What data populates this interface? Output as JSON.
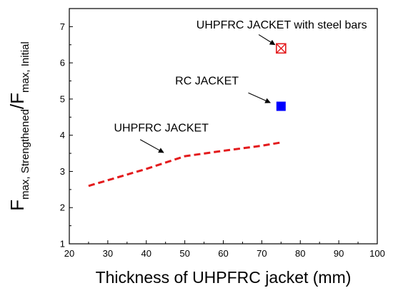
{
  "chart_data": {
    "type": "scatter",
    "xlabel": "Thickness of UHPFRC jacket (mm)",
    "ylabel": {
      "main1": "F",
      "sub1": "max, Strengthened",
      "slash": "/F",
      "sub2": "max, Initial"
    },
    "xlim": [
      20,
      100
    ],
    "ylim": [
      1,
      7.5
    ],
    "x_ticks": [
      20,
      30,
      40,
      50,
      60,
      70,
      80,
      90,
      100
    ],
    "y_ticks": [
      1,
      2,
      3,
      4,
      5,
      6,
      7
    ],
    "grid": false,
    "series": [
      {
        "name": "UHPFRC JACKET",
        "kind": "line",
        "style": "dashed",
        "color": "#e31a1c",
        "points": [
          {
            "x": 25,
            "y": 2.6
          },
          {
            "x": 40,
            "y": 3.07
          },
          {
            "x": 50,
            "y": 3.42
          },
          {
            "x": 60,
            "y": 3.57
          },
          {
            "x": 70,
            "y": 3.71
          },
          {
            "x": 75,
            "y": 3.8
          }
        ]
      },
      {
        "name": "RC JACKET",
        "kind": "marker",
        "marker": "filled-square",
        "color": "#0000ff",
        "points": [
          {
            "x": 75,
            "y": 4.8
          }
        ]
      },
      {
        "name": "UHPFRC JACKET with steel bars",
        "kind": "marker",
        "marker": "crossed-square",
        "color": "#e31a1c",
        "points": [
          {
            "x": 75,
            "y": 6.4
          }
        ]
      }
    ],
    "annotations": [
      {
        "text": "UHPFRC JACKET with steel bars",
        "text_at": {
          "x": 53,
          "y": 6.95
        },
        "arrow_from": {
          "x": 69.2,
          "y": 6.78
        },
        "arrow_to": {
          "x": 73.4,
          "y": 6.5
        }
      },
      {
        "text": "RC JACKET",
        "text_at": {
          "x": 47.5,
          "y": 5.4
        },
        "arrow_from": {
          "x": 66.5,
          "y": 5.17
        },
        "arrow_to": {
          "x": 72.2,
          "y": 4.9
        }
      },
      {
        "text": "UHPFRC JACKET",
        "text_at": {
          "x": 31.6,
          "y": 4.1
        },
        "arrow_from": {
          "x": 38.4,
          "y": 3.88
        },
        "arrow_to": {
          "x": 44.5,
          "y": 3.52
        }
      }
    ]
  }
}
